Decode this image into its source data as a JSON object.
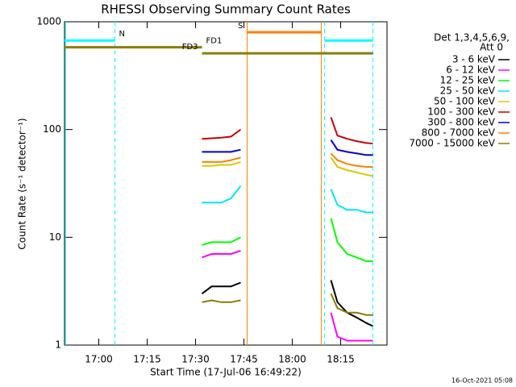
{
  "chart_data": {
    "type": "line",
    "title": "RHESSI Observing Summary Count Rates",
    "x_label": "Start Time (17-Jul-06 16:49:22)",
    "y_label": "Count Rate (s⁻¹ detector⁻¹)",
    "legend_title": [
      "Det 1,3,4,5,6,9,",
      "Att 0"
    ],
    "footer": "16-Oct-2021 05:08",
    "log_y": true,
    "grid": false,
    "legend": "right",
    "xlim": [
      "16:49:22",
      "18:29:22"
    ],
    "xticks": [
      "17:00",
      "17:15",
      "17:30",
      "17:45",
      "18:00",
      "18:15"
    ],
    "ylim": [
      1,
      1000
    ],
    "yticks": [
      1,
      10,
      100,
      1000
    ],
    "x": [
      "17:32",
      "17:35",
      "17:38",
      "17:41",
      "17:44",
      "17:55",
      "18:12",
      "18:14",
      "18:17",
      "18:20",
      "18:23",
      "18:25"
    ],
    "series": [
      {
        "name": "3 - 6 keV",
        "color": "#000000",
        "values": [
          3,
          3.5,
          3.5,
          3.5,
          3.8,
          null,
          4,
          2.5,
          2,
          1.8,
          1.6,
          1.5
        ]
      },
      {
        "name": "6 - 12 keV",
        "color": "#ff00ff",
        "values": [
          6.5,
          7,
          7,
          7,
          7.5,
          null,
          2,
          1.2,
          1.1,
          1.1,
          1.1,
          1.1
        ]
      },
      {
        "name": "12 - 25 keV",
        "color": "#00ff00",
        "values": [
          8.5,
          9,
          9,
          9,
          10,
          null,
          15,
          9,
          7,
          6.5,
          6,
          6
        ]
      },
      {
        "name": "25 - 50 keV",
        "color": "#00e5ff",
        "values": [
          21,
          21,
          21,
          23,
          30,
          null,
          28,
          20,
          18,
          18,
          17,
          17
        ]
      },
      {
        "name": "50 - 100 keV",
        "color": "#d8c800",
        "values": [
          46,
          46,
          47,
          47,
          50,
          null,
          55,
          45,
          42,
          40,
          38,
          37
        ]
      },
      {
        "name": "100 - 300 keV",
        "color": "#cc0000",
        "values": [
          82,
          83,
          84,
          86,
          100,
          null,
          130,
          88,
          82,
          78,
          75,
          74
        ]
      },
      {
        "name": "300 - 800 keV",
        "color": "#0000cc",
        "values": [
          62,
          62,
          62,
          62,
          65,
          null,
          80,
          65,
          62,
          60,
          58,
          58
        ]
      },
      {
        "name": "800 - 7000 keV",
        "color": "#ff8000",
        "values": [
          50,
          50,
          50,
          52,
          55,
          null,
          60,
          52,
          48,
          46,
          45,
          45
        ]
      },
      {
        "name": "7000 - 15000 keV",
        "color": "#8b7d00",
        "values": [
          2.5,
          2.6,
          2.5,
          2.5,
          2.6,
          null,
          3,
          2.2,
          2,
          2,
          1.9,
          1.9
        ]
      }
    ],
    "flags": [
      {
        "label": "N",
        "color": "#00ffff",
        "level": 670,
        "label_side": "after",
        "segments": [
          [
            "16:49:22",
            "17:05"
          ],
          [
            "18:10",
            "18:25"
          ]
        ]
      },
      {
        "label": "S",
        "color": "#ff8000",
        "level": 800,
        "label_side": "before",
        "segments": [
          [
            "17:46",
            "18:09"
          ]
        ]
      },
      {
        "label": "FD1",
        "color": "#8b7d00",
        "level": 580,
        "label_side": "after",
        "segments": [
          [
            "16:49:22",
            "17:32"
          ]
        ]
      },
      {
        "label": "FD3",
        "color": "#8b7d00",
        "level": 510,
        "label_side": "before",
        "segments": [
          [
            "17:32",
            "18:25"
          ]
        ]
      }
    ],
    "vlines": [
      {
        "x": "16:49:40",
        "color": "#00ffff",
        "dashed": false
      },
      {
        "x": "17:05",
        "color": "#00ffff",
        "dashed": true
      },
      {
        "x": "18:10",
        "color": "#00ffff",
        "dashed": true
      },
      {
        "x": "18:25",
        "color": "#00ffff",
        "dashed": true
      },
      {
        "x": "17:46",
        "color": "#ff8000",
        "dashed": false
      },
      {
        "x": "18:09",
        "color": "#ff8000",
        "dashed": false
      }
    ]
  }
}
